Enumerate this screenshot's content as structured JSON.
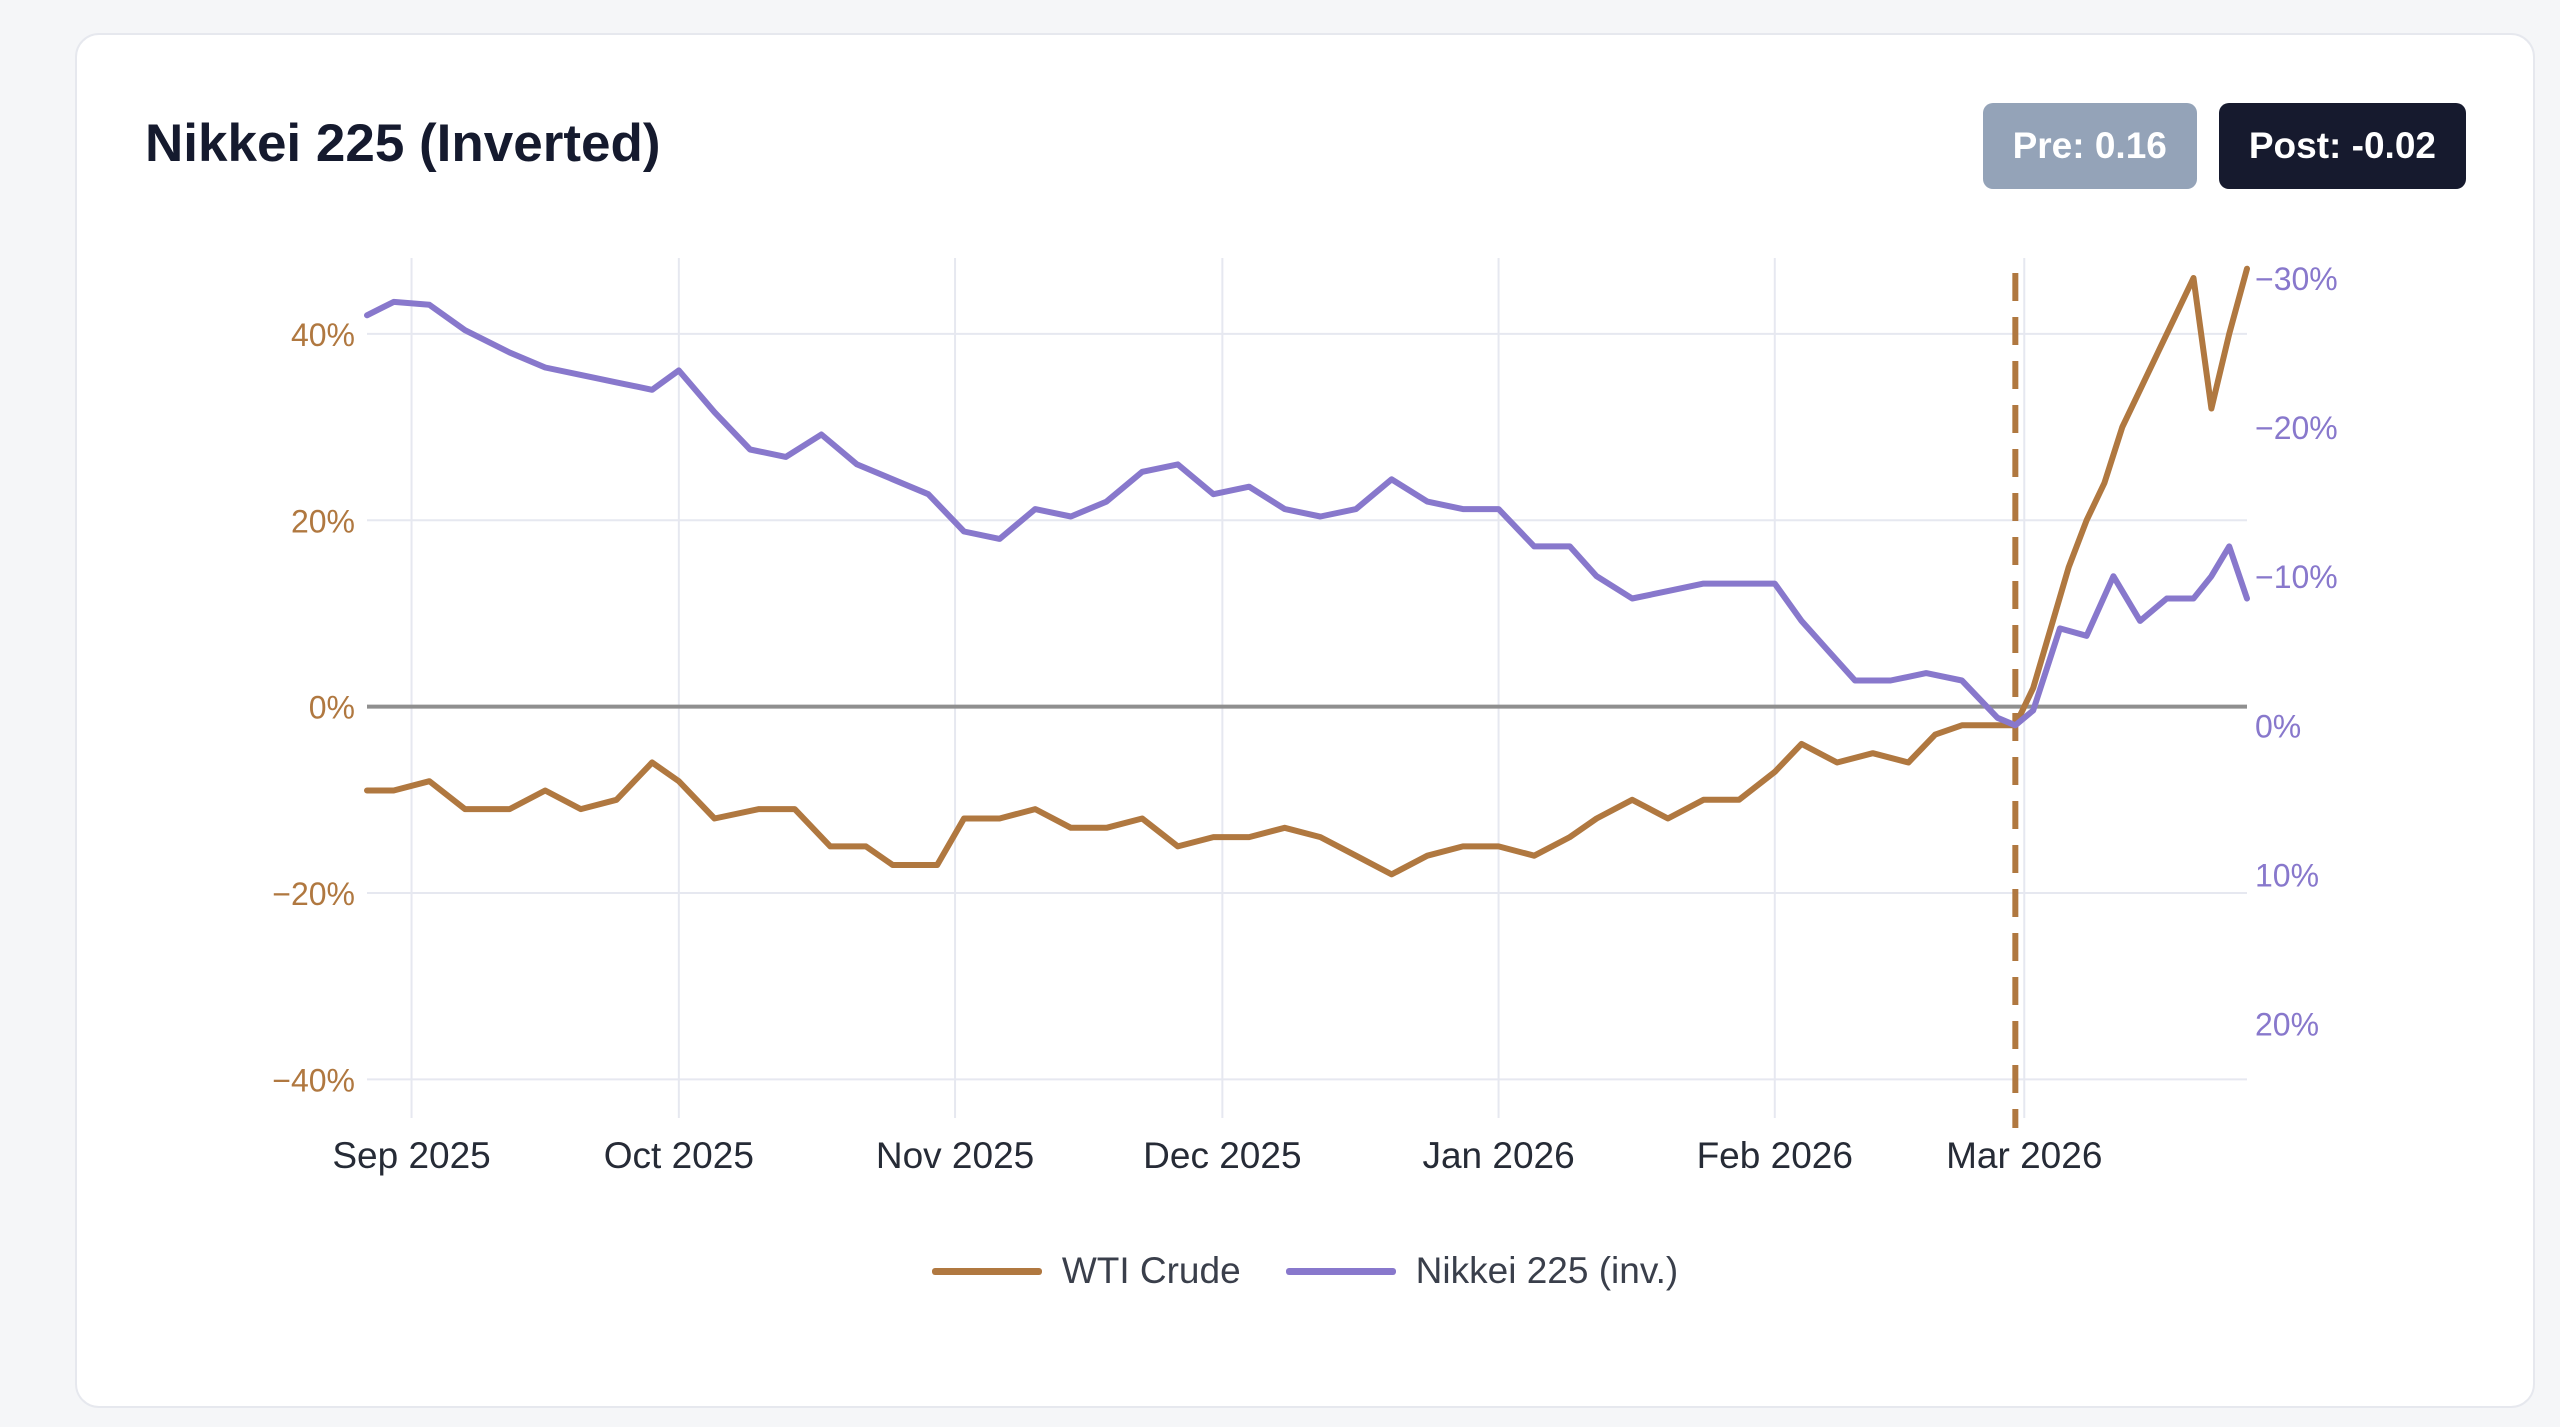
{
  "card": {
    "title": "Nikkei 225 (Inverted)",
    "pre_badge": "Pre: 0.16",
    "post_badge": "Post: -0.02"
  },
  "colors": {
    "wti": "#b07840",
    "nikkei": "#8878cc",
    "zero_line": "#8f8f8f",
    "grid": "#e6e8f0",
    "event_line": "#b07840"
  },
  "chart_data": {
    "type": "line",
    "title": "Nikkei 225 (Inverted)",
    "x_ticks": [
      "Sep 2025",
      "Oct 2025",
      "Nov 2025",
      "Dec 2025",
      "Jan 2026",
      "Feb 2026",
      "Mar 2026"
    ],
    "x_tick_dates": [
      "2025-09-01",
      "2025-10-01",
      "2025-11-01",
      "2025-12-01",
      "2026-01-01",
      "2026-02-01",
      "2026-03-01"
    ],
    "xlim": [
      "2025-08-27",
      "2026-03-26"
    ],
    "event_date": "2026-02-28",
    "y_left": {
      "ylim": [
        -42,
        46
      ],
      "ticks": [
        "40%",
        "20%",
        "0%",
        "−20%",
        "−40%"
      ],
      "tick_values": [
        40,
        20,
        0,
        -20,
        -40
      ]
    },
    "y_right": {
      "inverted": true,
      "ylim": [
        -30,
        25
      ],
      "ticks": [
        "−30%",
        "−20%",
        "−10%",
        "0%",
        "10%",
        "20%"
      ],
      "tick_values": [
        -30,
        -20,
        -10,
        0,
        10,
        20
      ]
    },
    "legend_position": "bottom-center",
    "series": [
      {
        "name": "WTI Crude",
        "axis": "left",
        "points": [
          [
            "2025-08-27",
            -9
          ],
          [
            "2025-08-30",
            -9
          ],
          [
            "2025-09-03",
            -8
          ],
          [
            "2025-09-07",
            -11
          ],
          [
            "2025-09-12",
            -11
          ],
          [
            "2025-09-16",
            -9
          ],
          [
            "2025-09-20",
            -11
          ],
          [
            "2025-09-24",
            -10
          ],
          [
            "2025-09-28",
            -6
          ],
          [
            "2025-10-01",
            -8
          ],
          [
            "2025-10-05",
            -12
          ],
          [
            "2025-10-10",
            -11
          ],
          [
            "2025-10-14",
            -11
          ],
          [
            "2025-10-18",
            -15
          ],
          [
            "2025-10-22",
            -15
          ],
          [
            "2025-10-25",
            -17
          ],
          [
            "2025-10-30",
            -17
          ],
          [
            "2025-11-02",
            -12
          ],
          [
            "2025-11-06",
            -12
          ],
          [
            "2025-11-10",
            -11
          ],
          [
            "2025-11-14",
            -13
          ],
          [
            "2025-11-18",
            -13
          ],
          [
            "2025-11-22",
            -12
          ],
          [
            "2025-11-26",
            -15
          ],
          [
            "2025-11-30",
            -14
          ],
          [
            "2025-12-04",
            -14
          ],
          [
            "2025-12-08",
            -13
          ],
          [
            "2025-12-12",
            -14
          ],
          [
            "2025-12-16",
            -16
          ],
          [
            "2025-12-20",
            -18
          ],
          [
            "2025-12-24",
            -16
          ],
          [
            "2025-12-28",
            -15
          ],
          [
            "2026-01-01",
            -15
          ],
          [
            "2026-01-05",
            -16
          ],
          [
            "2026-01-09",
            -14
          ],
          [
            "2026-01-12",
            -12
          ],
          [
            "2026-01-16",
            -10
          ],
          [
            "2026-01-20",
            -12
          ],
          [
            "2026-01-24",
            -10
          ],
          [
            "2026-01-28",
            -10
          ],
          [
            "2026-02-01",
            -7
          ],
          [
            "2026-02-04",
            -4
          ],
          [
            "2026-02-08",
            -6
          ],
          [
            "2026-02-12",
            -5
          ],
          [
            "2026-02-16",
            -6
          ],
          [
            "2026-02-19",
            -3
          ],
          [
            "2026-02-22",
            -2
          ],
          [
            "2026-02-25",
            -2
          ],
          [
            "2026-02-28",
            -2
          ],
          [
            "2026-03-02",
            2
          ],
          [
            "2026-03-06",
            15
          ],
          [
            "2026-03-08",
            20
          ],
          [
            "2026-03-10",
            24
          ],
          [
            "2026-03-12",
            30
          ],
          [
            "2026-03-14",
            34
          ],
          [
            "2026-03-16",
            38
          ],
          [
            "2026-03-18",
            42
          ],
          [
            "2026-03-20",
            46
          ],
          [
            "2026-03-22",
            32
          ],
          [
            "2026-03-24",
            40
          ],
          [
            "2026-03-26",
            47
          ]
        ]
      },
      {
        "name": "Nikkei 225 (inv.)",
        "axis": "right",
        "points": [
          [
            "2025-08-27",
            -27.5
          ],
          [
            "2025-08-30",
            -28.4
          ],
          [
            "2025-09-03",
            -28.2
          ],
          [
            "2025-09-07",
            -26.5
          ],
          [
            "2025-09-12",
            -25
          ],
          [
            "2025-09-16",
            -24
          ],
          [
            "2025-09-20",
            -23.5
          ],
          [
            "2025-09-24",
            -23
          ],
          [
            "2025-09-28",
            -22.5
          ],
          [
            "2025-10-01",
            -23.8
          ],
          [
            "2025-10-05",
            -21
          ],
          [
            "2025-10-09",
            -18.5
          ],
          [
            "2025-10-13",
            -18
          ],
          [
            "2025-10-17",
            -19.5
          ],
          [
            "2025-10-21",
            -17.5
          ],
          [
            "2025-10-25",
            -16.5
          ],
          [
            "2025-10-29",
            -15.5
          ],
          [
            "2025-11-02",
            -13
          ],
          [
            "2025-11-06",
            -12.5
          ],
          [
            "2025-11-10",
            -14.5
          ],
          [
            "2025-11-14",
            -14
          ],
          [
            "2025-11-18",
            -15
          ],
          [
            "2025-11-22",
            -17
          ],
          [
            "2025-11-26",
            -17.5
          ],
          [
            "2025-11-30",
            -15.5
          ],
          [
            "2025-12-04",
            -16
          ],
          [
            "2025-12-08",
            -14.5
          ],
          [
            "2025-12-12",
            -14
          ],
          [
            "2025-12-16",
            -14.5
          ],
          [
            "2025-12-20",
            -16.5
          ],
          [
            "2025-12-24",
            -15
          ],
          [
            "2025-12-28",
            -14.5
          ],
          [
            "2026-01-01",
            -14.5
          ],
          [
            "2026-01-05",
            -12
          ],
          [
            "2026-01-09",
            -12
          ],
          [
            "2026-01-12",
            -10
          ],
          [
            "2026-01-16",
            -8.5
          ],
          [
            "2026-01-20",
            -9
          ],
          [
            "2026-01-24",
            -9.5
          ],
          [
            "2026-01-28",
            -9.5
          ],
          [
            "2026-02-01",
            -9.5
          ],
          [
            "2026-02-04",
            -7
          ],
          [
            "2026-02-07",
            -5
          ],
          [
            "2026-02-10",
            -3
          ],
          [
            "2026-02-14",
            -3
          ],
          [
            "2026-02-18",
            -3.5
          ],
          [
            "2026-02-22",
            -3
          ],
          [
            "2026-02-26",
            -0.5
          ],
          [
            "2026-02-28",
            0
          ],
          [
            "2026-03-02",
            -1
          ],
          [
            "2026-03-05",
            -6.5
          ],
          [
            "2026-03-08",
            -6
          ],
          [
            "2026-03-11",
            -10
          ],
          [
            "2026-03-14",
            -7
          ],
          [
            "2026-03-17",
            -8.5
          ],
          [
            "2026-03-20",
            -8.5
          ],
          [
            "2026-03-22",
            -10
          ],
          [
            "2026-03-24",
            -12
          ],
          [
            "2026-03-26",
            -8.5
          ]
        ]
      }
    ]
  }
}
